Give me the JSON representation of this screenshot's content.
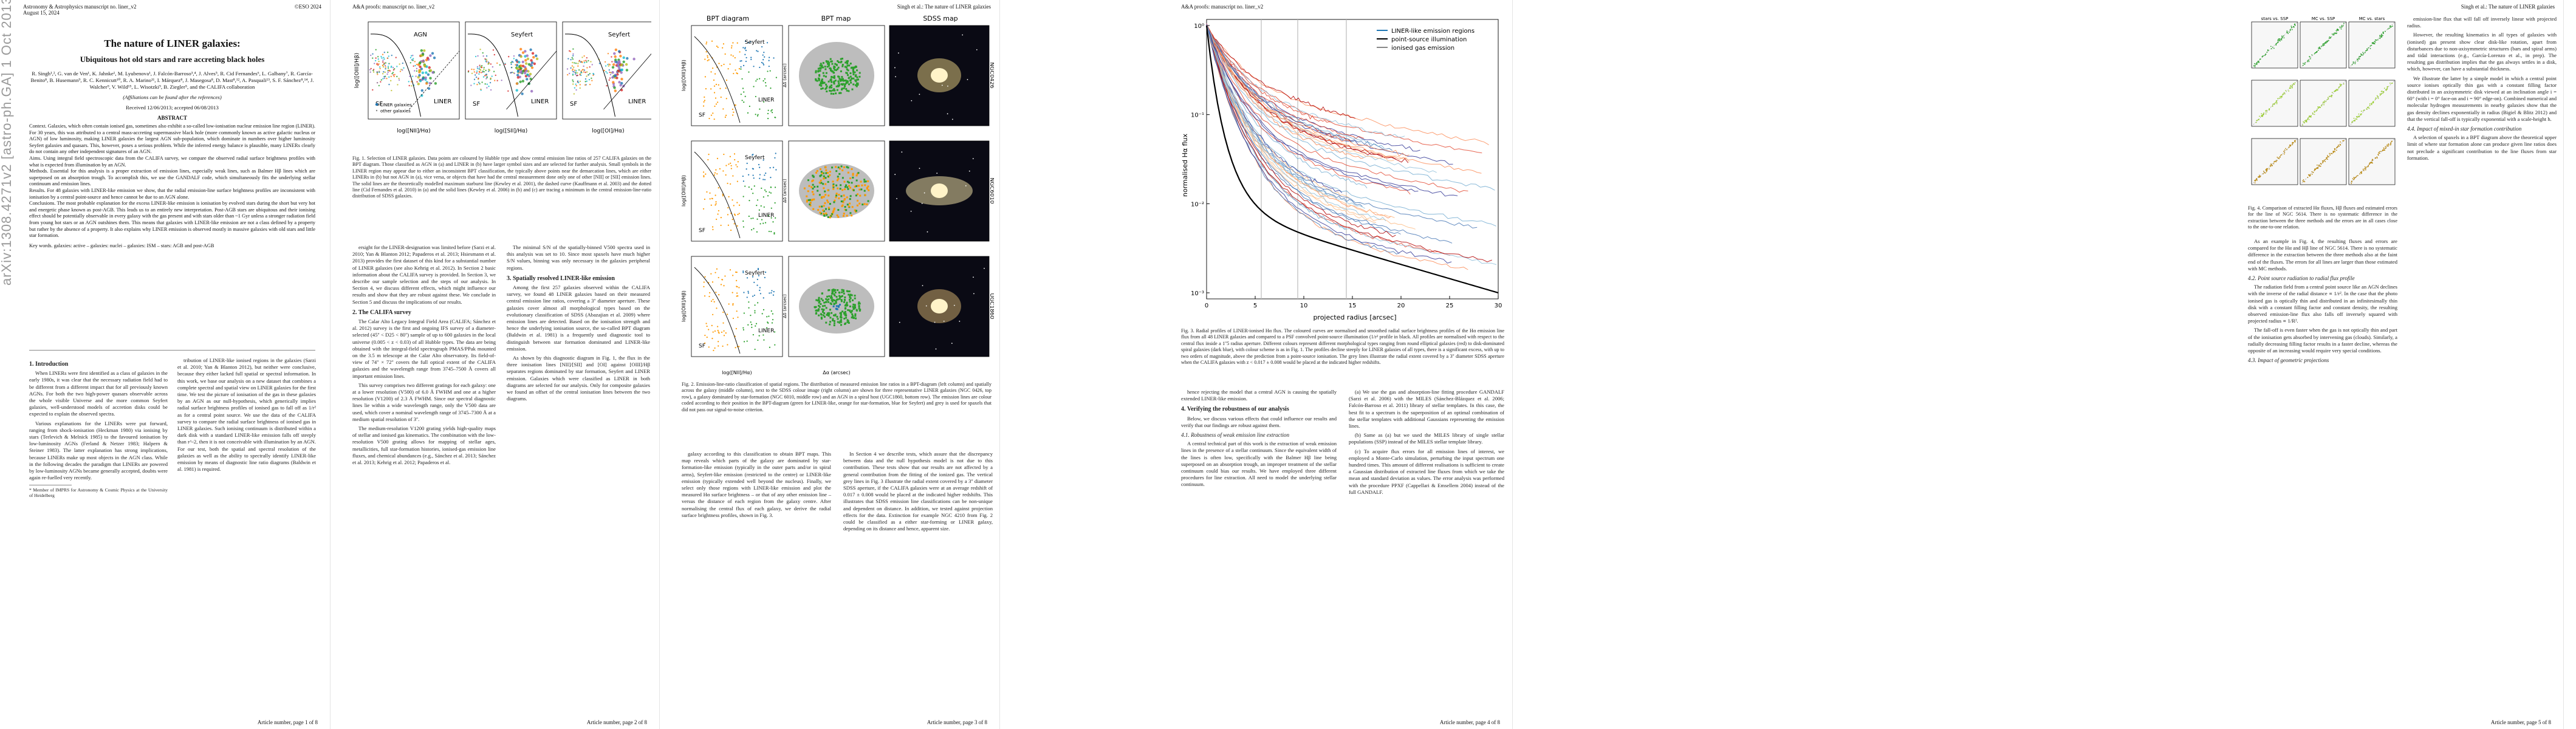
{
  "arxiv_id": "arXiv:1308.4271v2  [astro-ph.GA]  1 Oct 2013",
  "page1": {
    "journal": "Astronomy & Astrophysics manuscript no. liner_v2",
    "date": "August 15, 2024",
    "copyright": "©ESO 2024",
    "title": "The nature of LINER galaxies:",
    "subtitle": "Ubiquitous hot old stars and rare accreting black holes",
    "authors": "R. Singh¹,², G. van de Ven¹, K. Jahnke¹, M. Lyubenova¹, J. Falcón-Barroso³,⁴, J. Alves⁵, R. Cid Fernandes⁶, L. Galbany⁷, R. García-Benito⁸, B. Husemann⁹, R. C. Kennicutt¹⁰, R. A. Marino¹¹, I. Márquez⁸, J. Masegosa⁸, D. Mast⁸,¹², A. Pasquali¹³, S. F. Sánchez⁸,¹⁴, J. Walcher⁹, V. Wild¹⁵, L. Wisotzki⁹, B. Ziegler⁵, and the CALIFA collaboration",
    "affil_note": "(Affiliations can be found after the references)",
    "received": "Received 12/06/2013; accepted 06/08/2013",
    "abstract_head": "ABSTRACT",
    "abstract_context": "Context. Galaxies, which often contain ionised gas, sometimes also exhibit a so-called low-ionisation nuclear emission line region (LINER). For 30 years, this was attributed to a central mass-accreting supermassive black hole (more commonly known as active galactic nucleus or AGN) of low luminosity, making LINER galaxies the largest AGN sub-population, which dominate in numbers over higher luminosity Seyfert galaxies and quasars. This, however, poses a serious problem. While the inferred energy balance is plausible, many LINERs clearly do not contain any other independent signatures of an AGN.",
    "abstract_aims": "Aims. Using integral field spectroscopic data from the CALIFA survey, we compare the observed radial surface brightness profiles with what is expected from illumination by an AGN.",
    "abstract_methods": "Methods. Essential for this analysis is a proper extraction of emission lines, especially weak lines, such as Balmer Hβ lines which are superposed on an absorption trough. To accomplish this, we use the GANDALF code, which simultaneously fits the underlying stellar continuum and emission lines.",
    "abstract_results": "Results. For 48 galaxies with LINER-like emission we show, that the radial emission-line surface brightness profiles are inconsistent with ionisation by a central point-source and hence cannot be due to an AGN alone.",
    "abstract_conclusions": "Conclusions. The most probable explanation for the excess LINER-like emission is ionisation by evolved stars during the short but very hot and energetic phase known as post-AGB. This leads us to an entirely new interpretation. Post-AGB stars are ubiquitous and their ionising effect should be potentially observable in every galaxy with the gas present and with stars older than ~1 Gyr unless a stronger radiation field from young hot stars or an AGN outshines them. This means that galaxies with LINER-like emission are not a class defined by a property but rather by the absence of a property. It also explains why LINER emission is observed mostly in massive galaxies with old stars and little star formation.",
    "keywords": "Key words. galaxies: active – galaxies: nuclei – galaxies: ISM – stars: AGB and post-AGB",
    "sec1_head": "1. Introduction",
    "sec1_p1": "When LINERs were first identified as a class of galaxies in the early 1980s, it was clear that the necessary radiation field had to be different from a different impact that for all previously known AGNs. For both the two high-power quasars observable across the whole visible Universe and the more common Seyfert galaxies, well-understood models of accretion disks could be expected to explain the observed spectra.",
    "sec1_p2": "Various explanations for the LINERs were put forward, ranging from shock-ionisation (Heckman 1980) via ionising by stars (Terlevich & Melnick 1985) to the favoured ionisation by low-luminosity AGNs (Ferland & Netzer 1983; Halpern & Steiner 1983). The latter explanation has strong implications, because LINERs make up most objects in the AGN class. While in the following decades the paradigm that LINERs are powered by low-luminosity AGNs became generally accepted, doubts were again re-fuelled very recently.",
    "sec1_col2": "tribution of LINER-like ionised regions in the galaxies (Sarzi et al. 2010; Yan & Blanton 2012), but neither were conclusive, because they either lacked full spatial or spectral information. In this work, we base our analysis on a new dataset that combines a complete spectral and spatial view on LINER galaxies for the first time. We test the picture of ionisation of the gas in these galaxies by an AGN as our null-hypothesis, which generically implies radial surface brightness profiles of ionised gas to fall off as 1/r² as for a central point source. We use the data of the CALIFA survey to compare the radial surface brightness of ionised gas in LINER galaxies. Such ionising continuum is distributed within a dark disk with a standard LINER-like emission falls off steeply than r^-2, then it is not conceivable with illumination by an AGN. For our test, both the spatial and spectral resolution of the galaxies as well as the ability to spectrally identify LINER-like emission by means of diagnostic line ratio diagrams (Baldwin et al. 1981) is required.",
    "footnote": "* Member of IMPRS for Astronomy & Cosmic Physics at the University of Heidelberg",
    "footer": "Article number, page 1 of 8"
  },
  "page2": {
    "header_left": "A&A proofs: manuscript no. liner_v2",
    "fig1_labels": {
      "agn": "AGN",
      "sf": "SF",
      "seyfert": "Seyfert",
      "liner": "LINER",
      "xlabel": "log([NII]/Hα)",
      "ylabel": "log([OIII]/Hβ)",
      "xlabel2": "log([SII]/Hα)",
      "xlabel3": "log([OI]/Hα)",
      "legend1": "LINER galaxies",
      "legend2": "other galaxies"
    },
    "fig1_caption": "Fig. 1. Selection of LINER galaxies. Data points are coloured by Hubble type and show central emission line ratios of 257 CALIFA galaxies on the BPT diagram. Those classified as AGN in (a) and LINER in (b) have larger symbol sizes and are selected for further analysis. Small symbols in the LINER region may appear due to either an inconsistent BPT classification, the typically above points near the demarcation lines, which are either LINERs in (b) but not AGN in (a), vice versa, or objects that have had the central measurement done only one of other [NII] or [SII] emission lines. The solid lines are the theoretically modelled maximum starburst line (Kewley et al. 2001), the dashed curve (Kauffmann et al. 2003) and the dotted line (Cid Fernandes et al. 2010) in (a) and the solid lines (Kewley et al. 2006) in (b) and (c) are tracing a minimum in the central emission-line-ratio distribution of SDSS galaxies.",
    "col1": "ersight for the LINER-designation was limited before (Sarzi et al. 2010; Yan & Blanton 2012; Papaderos et al. 2013; Hsiesmann et al. 2013) provides the first dataset of this kind for a substantial number of LINER galaxies (see also Kehrig et al. 2012). In Section 2 basic information about the CALIFA survey is provided. In Section 3, we describe our sample selection and the steps of our analysis. In Section 4, we discuss different effects, which might influence our results and show that they are robust against these. We conclude in Section 5 and discuss the implications of our results.",
    "sec2_head": "2. The CALIFA survey",
    "sec2_p1": "The Calar Alto Legacy Integral Field Area (CALIFA; Sánchez et al. 2012) survey is the first and ongoing IFS survey of a diameter-selected (45'' < D25 < 80'') sample of up to 600 galaxies in the local universe (0.005 < z < 0.03) of all Hubble types. The data are being obtained with the integral-field spectrograph PMAS/PPak mounted on the 3.5 m telescope at the Calar Alto observatory. Its field-of-view of 74'' × 72'' covers the full optical extent of the CALIFA galaxies and the wavelength range from 3745–7500 Å covers all important emission lines.",
    "sec2_p2": "This survey comprises two different gratings for each galaxy: one at a lower resolution (V500) of 6.0 Å FWHM and one at a higher resolution (V1200) of 2.3 Å FWHM. Since our spectral diagnostic lines lie within a wide wavelength range, only the V500 data are used, which cover a nominal wavelength range of 3745–7300 Å at a medium spatial resolution of 3''.",
    "sec2_p3": "The medium-resolution V1200 grating yields high-quality maps of stellar and ionised gas kinematics. The combination with the low-resolution V500 grating allows for mapping of stellar ages, metallicities, full star-formation histories, ionised-gas emission line fluxes, and chemical abundances (e.g., Sánchez et al. 2013; Sánchez et al. 2013; Kehrig et al. 2012; Papaderos et al.",
    "col2_p1": "The minimal S/N of the spatially-binned V500 spectra used in this analysis was set to 10. Since most spaxels have much higher S/N values, binning was only necessary in the galaxies peripheral regions.",
    "sec3_head": "3. Spatially resolved LINER-like emission",
    "sec3_p1": "Among the first 257 galaxies observed within the CALIFA survey, we found 48 LINER galaxies based on their measured central emission line ratios, covering a 3'' diameter aperture. These galaxies cover almost all morphological types based on the evolutionary classification of SDSS (Abazajian et al. 2009) where emission lines are detected. Based on the ionisation strength and hence the underlying ionisation source, the so-called BPT diagram (Baldwin et al. 1981) is a frequently used diagnostic tool to distinguish between star formation dominated and LINER-like emission.",
    "sec3_p2": "As shown by this diagnostic diagram in Fig. 1, the flux in the three ionisation lines [NII]/[SII] and [OI] against [OIII]/Hβ separates regions dominated by star formation, Seyfert and LINER emission. Galaxies which were classified as LINER in both diagrams are selected for our analysis. Only for composite galaxies we found an offset of the central ionisation lines between the two diagrams.",
    "footer": "Article number, page 2 of 8"
  },
  "page3": {
    "header_right": "Singh et al.: The nature of LINER galaxies",
    "panel_bpt": "BPT diagram",
    "panel_map": "BPT map",
    "panel_sdss": "SDSS map",
    "gal1": "NGC0426",
    "gal2": "NGC6010",
    "gal3": "UGC1860",
    "label_seyfert": "Seyfert",
    "label_liner": "LINER",
    "label_sf": "SF",
    "xlabel": "log([NII]/Hα)",
    "xlabel_map": "Δα (arcsec)",
    "ylabel_map": "Δδ (arcsec)",
    "ylabel": "log([OIII]/Hβ)",
    "fig2_caption": "Fig. 2. Emission-line-ratio classification of spatial regions. The distribution of measured emission line ratios in a BPT-diagram (left column) and spatially across the galaxy (middle column), next to the SDSS colour image (right column) are shown for three representative LINER galaxies (NGC 0426, top row), a galaxy dominated by star-formation (NGC 6010, middle row) and an AGN in a spiral host (UGC1860, bottom row). The emission lines are colour coded according to their position in the BPT-diagram (green for LINER-like, orange for star-formation, blue for Seyfert) and grey is used for spaxels that did not pass our signal-to-noise criterion.",
    "col1": "galaxy according to this classification to obtain BPT maps. This map reveals which parts of the galaxy are dominated by star-formation-like emission (typically in the outer parts and/or in spiral arms), Seyfert-like emission (restricted to the centre) or LINER-like emission (typically extended well beyond the nucleus). Finally, we select only those regions with LINER-like emission and plot the measured Hα surface brightness – or that of any other emission line – versus the distance of each region from the galaxy centre. After normalising the central flux of each galaxy, we derive the radial surface brightness profiles, shown in Fig. 3.",
    "col2": "In Section 4 we describe tests, which assure that the discrepancy between data and the null hypothesis model is not due to this contribution. These tests show that our results are not affected by a general contribution from the fitting of the ionized gas. The vertical grey lines in Fig. 3 illustrate the radial extent covered by a 3'' diameter SDSS aperture, if the CALIFA galaxies were at an average redshift of 0.017 ± 0.008 would be placed at the indicated higher redshifts. This illustrates that SDSS emission line classifications can be non-unique and dependent on distance. In addition, we tested against projection effects for the data. Extinction for example NGC 4210 from Fig. 2 could be classified as a either star-forming or LINER galaxy, depending on its distance and hence, apparent size.",
    "footer": "Article number, page 3 of 8"
  },
  "page4": {
    "header_left": "A&A proofs: manuscript no. liner_v2",
    "legend": [
      "LINER-like emission regions",
      "point-source illumination",
      "ionised gas emission"
    ],
    "xlabel": "projected radius [arcsec]",
    "ylabel": "normalised Hα flux",
    "x_ticks": [
      "0",
      "5",
      "10",
      "15",
      "20",
      "25",
      "30"
    ],
    "y_ticks": [
      "10⁰",
      "10⁻¹",
      "10⁻²",
      "10⁻³"
    ],
    "fig3_caption": "Fig. 3. Radial profiles of LINER-ionised Hα flux. The coloured curves are normalised and smoothed radial surface brightness profiles of the Hα emission line flux from all 48 LINER galaxies and compared to a PSF convolved point-source illumination (1/r² profile in black. All profiles are normalised with respect to the central flux inside a 1''5 radius aperture. Different colours represent different morphological types ranging from round elliptical galaxies (red) to disk-dominated spiral galaxies (dark blue), with colour scheme is as in Fig. 1. The profiles decline steeply for LINER galaxies of all types, there is a significant excess, with up to two orders of magnitude, above the prediction from a point-source ionisation. The grey lines illustrate the radial extent covered by a 3'' diameter SDSS aperture when the CALIFA galaxies with z < 0.017 ± 0.008 would be placed at the indicated higher redshifts.",
    "col1_p1": "hence rejecting the model that a central AGN is causing the spatially extended LINER-like emission.",
    "sec4_head": "4. Verifying the robustness of our analysis",
    "col1_p2": "Below, we discuss various effects that could influence our results and verify that our findings are robust against them.",
    "sub41": "4.1. Robustness of weak emission line extraction",
    "col1_p3": "A central technical part of this work is the extraction of weak emission lines in the presence of a stellar continuum. Since the equivalent width of the lines is often low, specifically with the Balmer Hβ line being superposed on an absorption trough, an improper treatment of the stellar continuum could bias our results. We have employed three different procedures for line extraction. All need to model the underlying stellar continuum.",
    "col2_p1": "(a) We use the gas and absorption-line fitting procedure GANDALF (Sarzi et al. 2006) with the MILES (Sánchez-Blázquez et al. 2006; Falcón-Barroso et al. 2011) library of stellar templates. In this case, the best fit to a spectrum is the superposition of an optimal combination of the stellar templates with additional Gaussians representing the emission lines.",
    "col2_p2": "(b) Same as (a) but we used the MILES library of single stellar populations (SSP) instead of the MILES stellar template library.",
    "col2_p3": "(c) To acquire flux errors for all emission lines of interest, we employed a Monte-Carlo simulation, perturbing the input spectrum one hundred times. This amount of different realisations is sufficient to create a Gaussian distribution of extracted line fluxes from which we take the mean and standard deviation as values. The error analysis was performed with the procedure PPXF (Cappellari & Emsellem 2004) instead of the full GANDALF.",
    "footer": "Article number, page 4 of 8"
  },
  "page5": {
    "header_right": "Singh et al.: The nature of LINER galaxies",
    "panel_titles": [
      "stars vs. SSP",
      "MC vs. SSP",
      "MC vs. stars"
    ],
    "fig4_caption": "Fig. 4. Comparison of extracted Hα fluxes, Hβ fluxes and estimated errors for the line of NGC 5614. There is no systematic difference in the extraction between the three methods and the errors are in all cases close to the one-to-one relation.",
    "col1_p1": "As an example in Fig. 4, the resulting fluxes and errors are compared for the Hα and Hβ line of NGC 5614. There is no systematic difference in the extraction between the three methods also at the faint end of the fluxes. The errors for all lines are larger than those estimated with MC methods.",
    "sub42": "4.2. Point source radiation to radial flux profile",
    "col1_p2": "The radiation field from a central point source like an AGN declines with the inverse of the radial distance ∝ 1/r². In the case that the photo ionised gas is optically thin and distributed in an infinitesimally thin disk with a constant filling factor and constant density, the resulting observed emission-line flux also falls off inversely squared with projected radius ∝ 1/R².",
    "col1_p3": "The fall-off is even faster when the gas is not optically thin and part of the ionisation gets absorbed by intervening gas (clouds). Similarly, a radially decreasing filling factor results in a faster decline, whereas the opposite of an increasing would require very special conditions.",
    "sub43": "4.3. Impact of geometric projections",
    "col2_p1": "emission-line flux that will fall off inversely linear with projected radius.",
    "col2_p2": "However, the resulting kinematics in all types of galaxies with (ionised) gas present show clear disk-like rotation, apart from disturbances due to non-axisymmetric structures (bars and spiral arms) and tidal interactions (e.g., García-Lorenzo et al., in prep). The resulting gas distribution implies that the gas always settles in a disk, which, however, can have a substantial thickness.",
    "col2_p3": "We illustrate the latter by a simple model in which a central point source ionises optically thin gas with a constant filling factor distributed in an axisymmetric disk viewed at an inclination angle i = 60° (with i = 0° face-on and i = 90° edge-on). Combined numerical and molecular hydrogen measurements in nearby galaxies show that the gas density declines exponentially in radius (Bigiel & Blitz 2012) and that the vertical fall-off is typically exponential with a scale-height h.",
    "sub44": "4.4. Impact of mixed-in star formation contribution",
    "col2_p4": "A selection of spaxels in a BPT diagram above the theoretical upper limit of where star formation alone can produce given line ratios does not preclude a significant contribution to the line fluxes from star formation.",
    "footer": "Article number, page 5 of 8"
  }
}
